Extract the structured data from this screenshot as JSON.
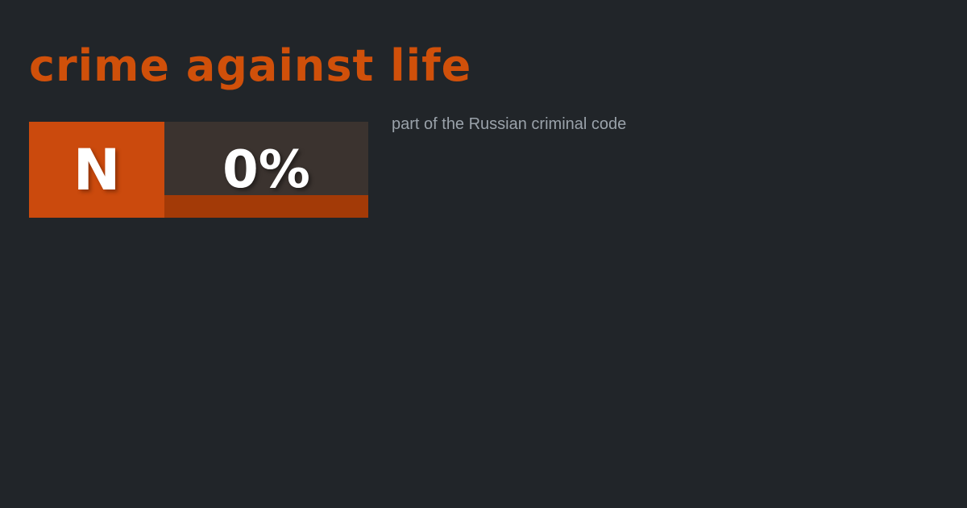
{
  "card": {
    "title": "crime against life",
    "subtitle": "part of the Russian criminal code",
    "badge": {
      "letter": "N",
      "percent": "0%"
    },
    "colors": {
      "background": "#212529",
      "title": "#D0500A",
      "subtitle": "#9AA2AA",
      "badge_letter_bg": "#CB4A0D",
      "badge_value_bg": "#3B332F",
      "badge_bar": "#A33A07",
      "badge_text": "#FFFFFF"
    }
  }
}
